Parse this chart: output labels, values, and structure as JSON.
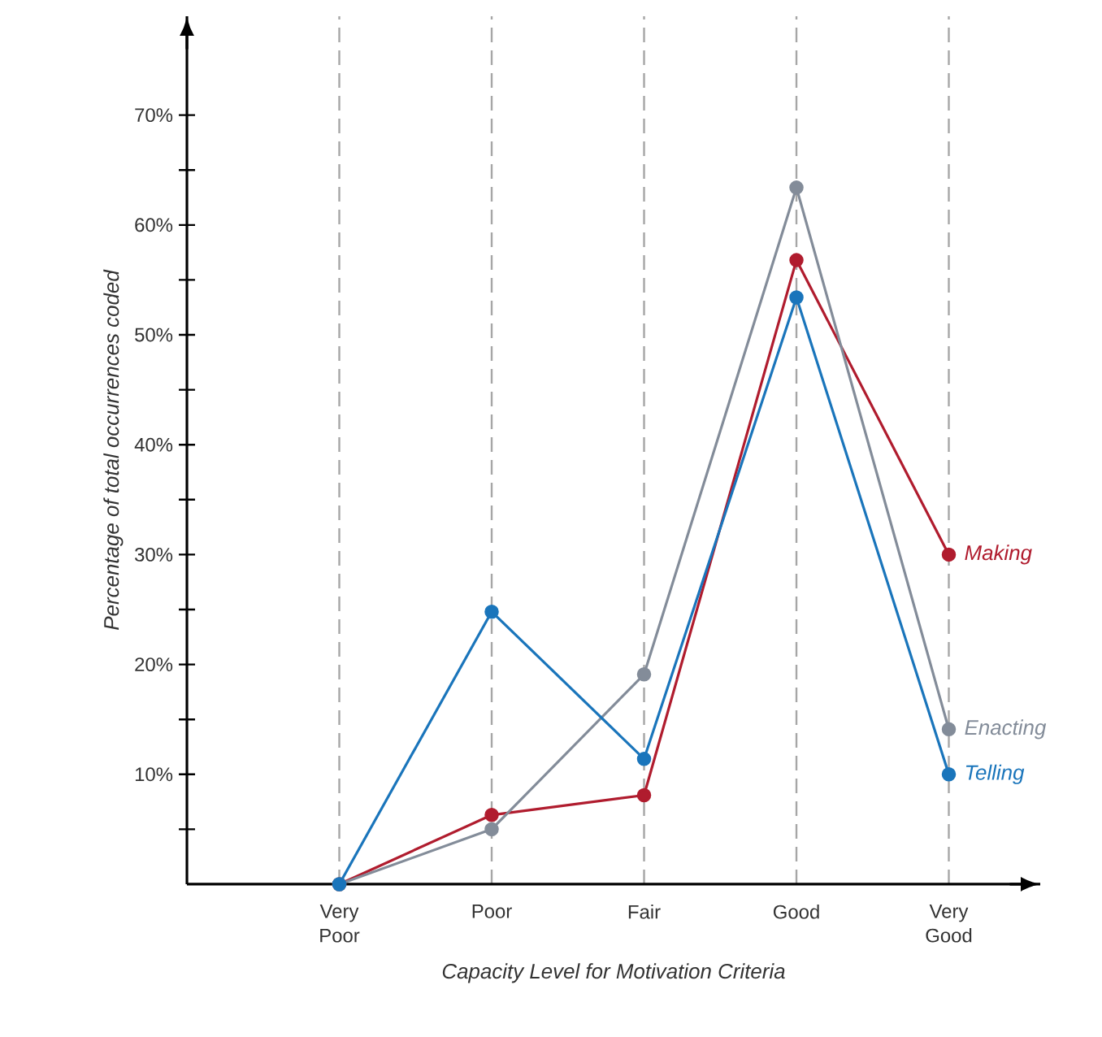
{
  "chart_data": {
    "type": "line",
    "xlabel": "Capacity Level for Motivation Criteria",
    "ylabel": "Percentage of total occurrences coded",
    "categories": [
      "Very Poor",
      "Poor",
      "Fair",
      "Good",
      "Very Good"
    ],
    "series": [
      {
        "name": "Making",
        "color": "#b01c2e",
        "values": [
          0,
          6.3,
          8.1,
          56.8,
          30.0
        ]
      },
      {
        "name": "Enacting",
        "color": "#838c99",
        "values": [
          0,
          5.0,
          19.1,
          63.4,
          14.1
        ]
      },
      {
        "name": "Telling",
        "color": "#1a75bb",
        "values": [
          0,
          24.8,
          11.4,
          53.4,
          10.0
        ]
      }
    ],
    "ylim": [
      0,
      79
    ],
    "yticks": [
      {
        "value": 5,
        "label": null
      },
      {
        "value": 10,
        "label": "10%"
      },
      {
        "value": 15,
        "label": null
      },
      {
        "value": 20,
        "label": "20%"
      },
      {
        "value": 25,
        "label": null
      },
      {
        "value": 30,
        "label": "30%"
      },
      {
        "value": 35,
        "label": null
      },
      {
        "value": 40,
        "label": "40%"
      },
      {
        "value": 45,
        "label": null
      },
      {
        "value": 50,
        "label": "50%"
      },
      {
        "value": 55,
        "label": null
      },
      {
        "value": 60,
        "label": "60%"
      },
      {
        "value": 65,
        "label": null
      },
      {
        "value": 70,
        "label": "70%"
      }
    ],
    "grid": "x",
    "legend": false,
    "marker": "circle",
    "line_style": "solid"
  }
}
